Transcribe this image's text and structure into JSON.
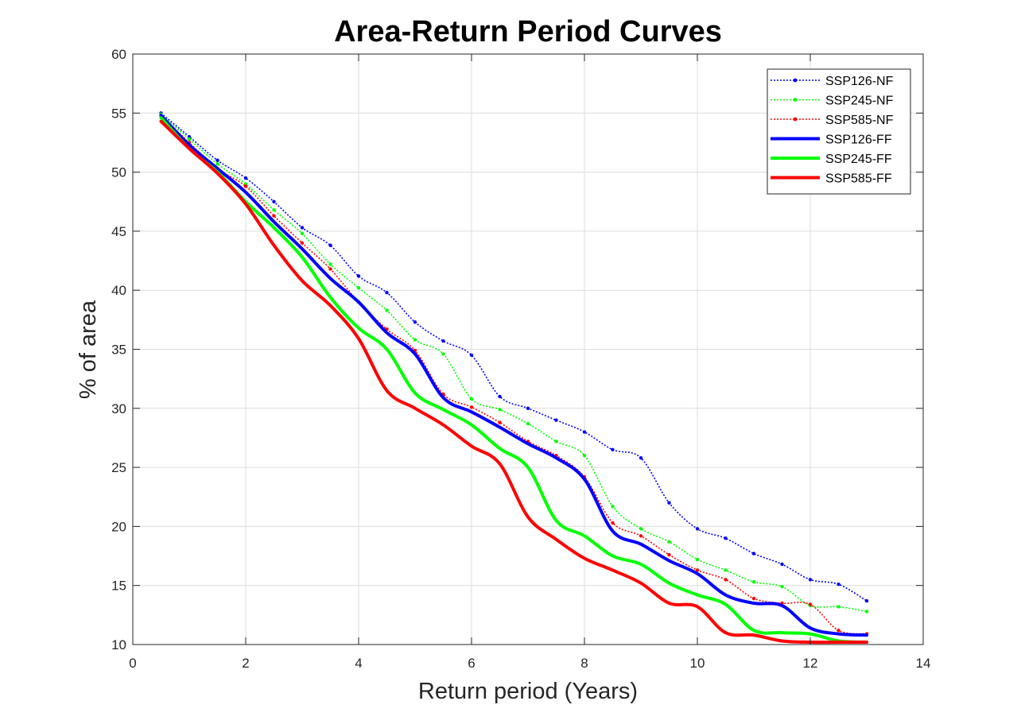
{
  "chart_data": {
    "type": "line",
    "title": "Area-Return Period Curves",
    "xlabel": "Return period (Years)",
    "ylabel": "% of area",
    "xlim": [
      0,
      14
    ],
    "ylim": [
      10,
      60
    ],
    "xticks": [
      0,
      2,
      4,
      6,
      8,
      10,
      12,
      14
    ],
    "yticks": [
      10,
      15,
      20,
      25,
      30,
      35,
      40,
      45,
      50,
      55,
      60
    ],
    "grid": true,
    "legend_position": "top-right",
    "series": [
      {
        "name": "SSP126-NF",
        "color": "#0000ff",
        "style": "dotted-marker",
        "x": [
          0.5,
          1,
          1.5,
          2,
          2.5,
          3,
          3.5,
          4,
          4.5,
          5,
          5.5,
          6,
          6.5,
          7,
          7.5,
          8,
          8.5,
          9,
          9.5,
          10,
          10.5,
          11,
          11.5,
          12,
          12.5,
          13
        ],
        "y": [
          55,
          53,
          51,
          49.5,
          47.5,
          45.3,
          43.8,
          41.2,
          39.8,
          37.3,
          35.7,
          34.5,
          31,
          30,
          29,
          28,
          26.5,
          25.8,
          22,
          19.8,
          19.0,
          17.7,
          16.8,
          15.5,
          15.1,
          13.7
        ]
      },
      {
        "name": "SSP245-NF",
        "color": "#00ff00",
        "style": "dotted-marker",
        "x": [
          0.5,
          1,
          1.5,
          2,
          2.5,
          3,
          3.5,
          4,
          4.5,
          5,
          5.5,
          6,
          6.5,
          7,
          7.5,
          8,
          8.5,
          9,
          9.5,
          10,
          10.5,
          11,
          11.5,
          12,
          12.5,
          13
        ],
        "y": [
          54.9,
          52.8,
          50.7,
          49,
          46.8,
          44.8,
          42.2,
          40.2,
          38.3,
          35.8,
          34.6,
          30.8,
          29.9,
          28.7,
          27.2,
          26,
          21.7,
          19.8,
          18.7,
          17.2,
          16.3,
          15.3,
          14.9,
          13.3,
          13.2,
          12.8
        ]
      },
      {
        "name": "SSP585-NF",
        "color": "#ff0000",
        "style": "dotted-marker",
        "x": [
          0.5,
          1,
          1.5,
          2,
          2.5,
          3,
          3.5,
          4,
          4.5,
          5,
          5.5,
          6,
          6.5,
          7,
          7.5,
          8,
          8.5,
          9,
          9.5,
          10,
          10.5,
          11,
          11.5,
          12,
          12.5,
          13
        ],
        "y": [
          54.8,
          52.5,
          50.3,
          48.8,
          46.3,
          44,
          41.8,
          39,
          36.7,
          34.9,
          31.2,
          30.1,
          28.8,
          27.2,
          26,
          24.2,
          20.3,
          19.2,
          17.6,
          16.3,
          15.5,
          13.9,
          13.5,
          13.4,
          11.2,
          10.9
        ]
      },
      {
        "name": "SSP126-FF",
        "color": "#0000ff",
        "style": "solid",
        "x": [
          0.5,
          1,
          1.5,
          2,
          2.5,
          3,
          3.5,
          4,
          4.5,
          5,
          5.5,
          6,
          6.5,
          7,
          7.5,
          8,
          8.5,
          9,
          9.5,
          10,
          10.5,
          11,
          11.5,
          12,
          12.5,
          13
        ],
        "y": [
          54.8,
          52.3,
          50.3,
          48.3,
          45.8,
          43.5,
          41,
          39,
          36.4,
          34.6,
          30.9,
          29.7,
          28.4,
          27,
          25.8,
          24,
          19.6,
          18.5,
          17.1,
          16,
          14.2,
          13.5,
          13.3,
          11.4,
          10.9,
          10.8
        ]
      },
      {
        "name": "SSP245-FF",
        "color": "#00ff00",
        "style": "solid",
        "x": [
          0.5,
          1,
          1.5,
          2,
          2.5,
          3,
          3.5,
          4,
          4.5,
          5,
          5.5,
          6,
          6.5,
          7,
          7.5,
          8,
          8.5,
          9,
          9.5,
          10,
          10.5,
          11,
          11.5,
          12,
          12.5,
          13
        ],
        "y": [
          54.6,
          52,
          50,
          47.5,
          45.3,
          42.8,
          39.4,
          36.8,
          35,
          31.3,
          29.9,
          28.6,
          26.6,
          25,
          20.5,
          19.2,
          17.5,
          16.8,
          15.2,
          14.2,
          13.4,
          11.2,
          11,
          10.9,
          10.3,
          10.2
        ]
      },
      {
        "name": "SSP585-FF",
        "color": "#ff0000",
        "style": "solid",
        "x": [
          0.5,
          1,
          1.5,
          2,
          2.5,
          3,
          3.5,
          4,
          4.5,
          5,
          5.5,
          6,
          6.5,
          7,
          7.5,
          8,
          8.5,
          9,
          9.5,
          10,
          10.5,
          11,
          11.5,
          12,
          12.5,
          13
        ],
        "y": [
          54.3,
          52,
          49.9,
          47.3,
          43.8,
          40.8,
          38.7,
          35.9,
          31.5,
          30,
          28.6,
          26.8,
          25.3,
          20.8,
          18.9,
          17.3,
          16.3,
          15.2,
          13.5,
          13.2,
          11,
          10.8,
          10.3,
          10.2,
          10.2,
          10.2
        ]
      }
    ]
  }
}
